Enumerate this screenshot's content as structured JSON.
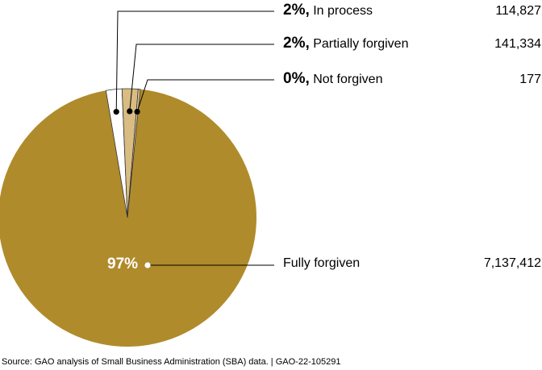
{
  "chart_data": {
    "type": "pie",
    "categories": [
      "In process",
      "Partially forgiven",
      "Not forgiven",
      "Fully forgiven"
    ],
    "values": [
      114827,
      141334,
      177,
      7137412
    ],
    "percent_labels": [
      "2%,",
      "2%,",
      "0%,",
      "97%"
    ],
    "value_labels": [
      "114,827",
      "141,334",
      "177",
      "7,137,412"
    ],
    "colors": [
      "#ffffff",
      "#d9bc82",
      "#e3cfa6",
      "#b08b2b"
    ],
    "outline_color": "#111111",
    "source": "Source: GAO analysis of Small Business Administration (SBA) data.  |  GAO-22-105291"
  }
}
